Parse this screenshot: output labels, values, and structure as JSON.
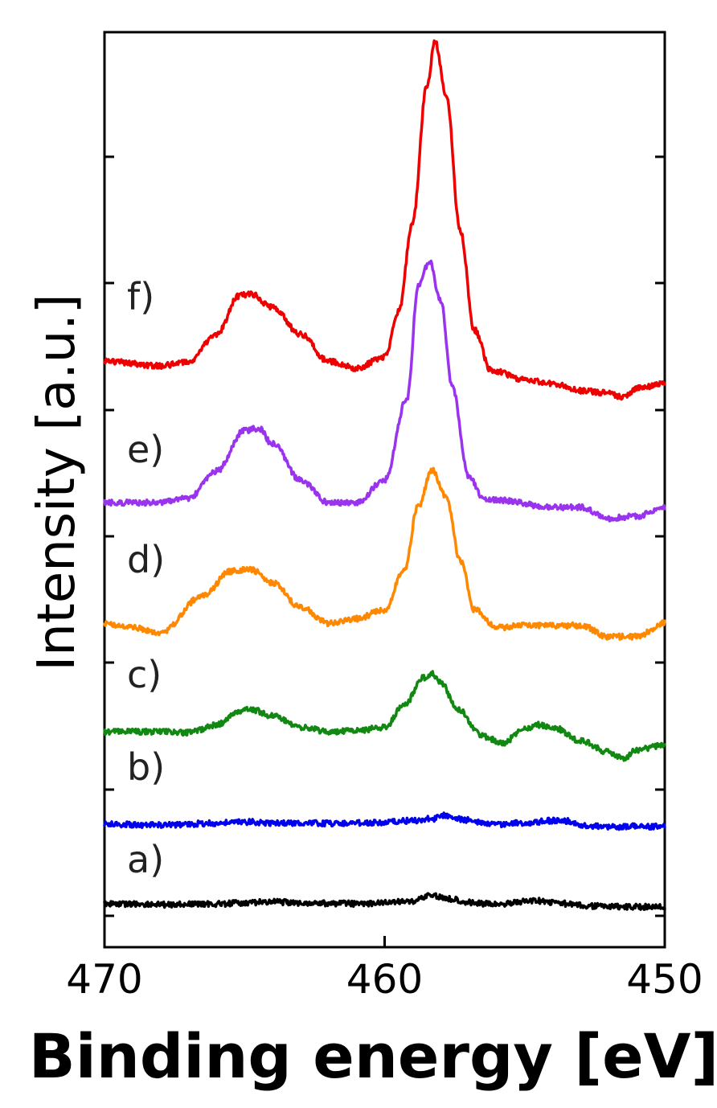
{
  "chart_data": {
    "type": "line",
    "xlabel": "Binding energy [eV]",
    "ylabel": "Intensity [a.u.]",
    "xlim": [
      470,
      450
    ],
    "xticks": [
      "470",
      "460",
      "450"
    ],
    "y_ticks_unlabeled": 8,
    "series": [
      {
        "name": "a)",
        "color": "#000000",
        "x": [
          470,
          468,
          466,
          465,
          464,
          463,
          462,
          461,
          460,
          459,
          458.4,
          457.6,
          457,
          456,
          455,
          454.5,
          454,
          453,
          452,
          451,
          450
        ],
        "y": [
          0.02,
          0.0,
          0.01,
          0.04,
          0.06,
          0.04,
          0.03,
          0.02,
          0.04,
          0.08,
          0.2,
          0.12,
          0.05,
          0.0,
          0.07,
          0.08,
          0.05,
          -0.02,
          -0.04,
          -0.05,
          -0.04
        ]
      },
      {
        "name": "b)",
        "color": "#0000ee",
        "x": [
          470,
          468,
          466,
          465,
          464,
          462,
          460,
          459,
          458.3,
          457.8,
          457.2,
          456,
          455,
          454,
          453.5,
          453,
          452,
          451,
          450
        ],
        "y": [
          0.0,
          -0.02,
          0.02,
          0.05,
          0.03,
          0.02,
          0.04,
          0.08,
          0.12,
          0.2,
          0.1,
          0.0,
          0.03,
          0.08,
          0.07,
          -0.02,
          -0.06,
          -0.05,
          -0.05
        ]
      },
      {
        "name": "c)",
        "color": "#118811",
        "x": [
          470,
          468,
          467,
          466,
          465.2,
          464.8,
          464,
          463,
          462,
          461,
          460,
          459.3,
          458.6,
          458.3,
          458,
          457.4,
          456.5,
          455.8,
          455,
          454.5,
          454,
          453,
          452,
          451.5,
          451,
          450
        ],
        "y": [
          0.0,
          0.0,
          -0.02,
          0.15,
          0.45,
          0.5,
          0.35,
          0.1,
          0.0,
          0.02,
          0.1,
          0.6,
          1.2,
          1.3,
          1.1,
          0.5,
          -0.1,
          -0.25,
          0.05,
          0.15,
          0.1,
          -0.2,
          -0.45,
          -0.6,
          -0.4,
          -0.3
        ]
      },
      {
        "name": "d)",
        "color": "#ff8800",
        "x": [
          470,
          469,
          468,
          466.5,
          465.5,
          464.8,
          464,
          463,
          462,
          461,
          460,
          459.3,
          458.8,
          458.3,
          457.8,
          457.3,
          456.8,
          456,
          455,
          453,
          452,
          451,
          450
        ],
        "y": [
          0.0,
          -0.1,
          -0.2,
          0.6,
          1.15,
          1.2,
          0.9,
          0.35,
          0.0,
          0.1,
          0.3,
          1.2,
          2.6,
          3.4,
          2.8,
          1.4,
          0.3,
          -0.1,
          -0.05,
          -0.05,
          -0.3,
          -0.3,
          0.0
        ]
      },
      {
        "name": "e)",
        "color": "#9933ee",
        "x": [
          470,
          468,
          467,
          466,
          465,
          464.5,
          464,
          463,
          462,
          461,
          460,
          459.2,
          458.8,
          458.4,
          458,
          457.6,
          457,
          456.5,
          456,
          454,
          453,
          452,
          451,
          450
        ],
        "y": [
          0.0,
          0.0,
          0.1,
          0.7,
          1.6,
          1.65,
          1.3,
          0.5,
          0.0,
          0.0,
          0.5,
          2.3,
          4.8,
          5.35,
          4.5,
          2.6,
          0.6,
          0.1,
          0.05,
          -0.1,
          -0.1,
          -0.35,
          -0.3,
          -0.1
        ]
      },
      {
        "name": "f)",
        "color": "#ee0000",
        "x": [
          470,
          468,
          467,
          466,
          465.2,
          464.8,
          464,
          463,
          462,
          461,
          460,
          459.5,
          459,
          458.5,
          458.2,
          457.8,
          457.3,
          456.8,
          456.2,
          455,
          454,
          453,
          452,
          451.5,
          451,
          450
        ],
        "y": [
          0.1,
          0.0,
          0.1,
          0.7,
          1.55,
          1.6,
          1.3,
          0.7,
          0.1,
          -0.05,
          0.2,
          1.2,
          3.2,
          6.2,
          7.2,
          6.0,
          3.0,
          0.8,
          -0.1,
          -0.3,
          -0.4,
          -0.55,
          -0.6,
          -0.7,
          -0.5,
          -0.4
        ]
      }
    ]
  }
}
